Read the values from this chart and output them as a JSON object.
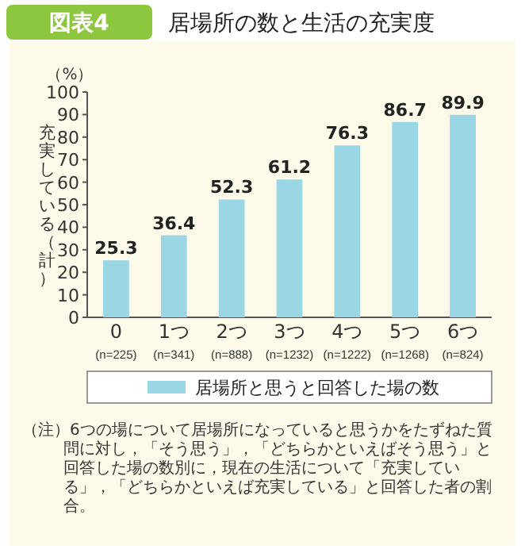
{
  "chart_data": {
    "type": "bar",
    "title": "居場所の数と生活の充実度",
    "subtitle": "図表4",
    "ylabel": "充実している（計）",
    "annotations": [
      "（%）",
      "（注）6つの場について居場所になっていると思うかをたずねた質問に対し，「そう思う」，「どちらかといえばそう思う」と回答した場の数別に，現在の生活について「充実している」，「どちらかといえば充実している」と回答した者の割合。"
    ],
    "categories": [
      "0\n(n=225)",
      "1つ\n(n=341)",
      "2つ\n(n=888)",
      "3つ\n(n=1232)",
      "4つ\n(n=1222)",
      "5つ\n(n=1268)",
      "6つ\n(n=824)"
    ],
    "series": [
      {
        "name": "居場所と思うと回答した場の数",
        "color": "#9ad6e3",
        "values": [
          25.3,
          36.4,
          52.3,
          61.2,
          76.3,
          86.7,
          89.9
        ]
      }
    ],
    "ylim": [
      0,
      100
    ],
    "yticks": [
      0,
      10,
      20,
      30,
      40,
      50,
      60,
      70,
      80,
      90,
      100
    ],
    "data_labels": true,
    "legend": "bottom"
  }
}
